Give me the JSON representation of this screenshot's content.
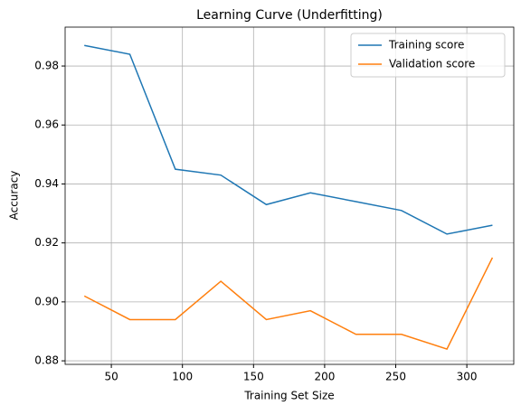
{
  "chart_data": {
    "type": "line",
    "title": "Learning Curve (Underfitting)",
    "x_label": "Training Set Size",
    "y_label": "Accuracy",
    "x": [
      31,
      63,
      95,
      127,
      159,
      190,
      222,
      254,
      286,
      318
    ],
    "series": [
      {
        "name": "Training score",
        "color": "#1f77b4",
        "values": [
          0.987,
          0.984,
          0.945,
          0.943,
          0.933,
          0.937,
          0.934,
          0.931,
          0.923,
          0.926
        ]
      },
      {
        "name": "Validation score",
        "color": "#ff7f0e",
        "values": [
          0.902,
          0.894,
          0.894,
          0.907,
          0.894,
          0.897,
          0.889,
          0.889,
          0.884,
          0.915
        ]
      }
    ],
    "xlim": [
      17.5,
      333
    ],
    "xticks": [
      50,
      100,
      150,
      200,
      250,
      300
    ],
    "ylim": [
      0.8788,
      0.9932
    ],
    "yticks": [
      0.88,
      {
        "value": 0.9,
        "label": "0.90"
      },
      0.92,
      0.94,
      0.96,
      0.98
    ],
    "grid": true,
    "legend": "upper right"
  }
}
